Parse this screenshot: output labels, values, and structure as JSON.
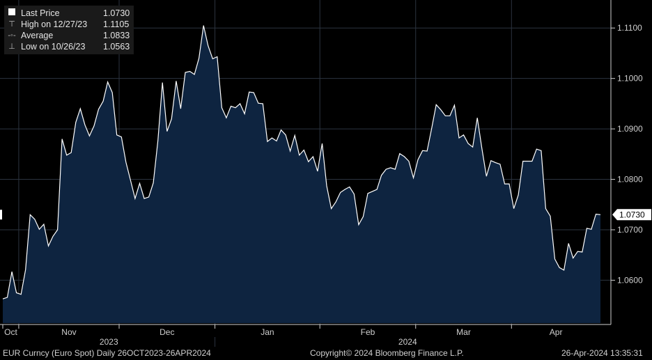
{
  "chart_data": {
    "type": "area",
    "ylim": [
      1.0515,
      1.115
    ],
    "y_ticks": [
      {
        "value": 1.06,
        "label": "1.0600"
      },
      {
        "value": 1.07,
        "label": "1.0700"
      },
      {
        "value": 1.08,
        "label": "1.0800"
      },
      {
        "value": 1.09,
        "label": "1.0900"
      },
      {
        "value": 1.1,
        "label": "1.1000"
      },
      {
        "value": 1.11,
        "label": "1.1100"
      }
    ],
    "x_month_labels": [
      "Oct",
      "Nov",
      "Dec",
      "Jan",
      "Feb",
      "Mar",
      "Apr"
    ],
    "x_year_labels": [
      "2023",
      "2024"
    ],
    "last_price_label": "1.0730",
    "x": [
      "2023-10-26",
      "2023-10-27",
      "2023-10-30",
      "2023-10-31",
      "2023-11-01",
      "2023-11-02",
      "2023-11-03",
      "2023-11-06",
      "2023-11-07",
      "2023-11-08",
      "2023-11-09",
      "2023-11-10",
      "2023-11-13",
      "2023-11-14",
      "2023-11-15",
      "2023-11-16",
      "2023-11-17",
      "2023-11-20",
      "2023-11-21",
      "2023-11-22",
      "2023-11-23",
      "2023-11-24",
      "2023-11-27",
      "2023-11-28",
      "2023-11-29",
      "2023-11-30",
      "2023-12-01",
      "2023-12-04",
      "2023-12-05",
      "2023-12-06",
      "2023-12-07",
      "2023-12-08",
      "2023-12-11",
      "2023-12-12",
      "2023-12-13",
      "2023-12-14",
      "2023-12-15",
      "2023-12-18",
      "2023-12-19",
      "2023-12-20",
      "2023-12-21",
      "2023-12-22",
      "2023-12-25",
      "2023-12-26",
      "2023-12-27",
      "2023-12-28",
      "2023-12-29",
      "2024-01-01",
      "2024-01-02",
      "2024-01-03",
      "2024-01-04",
      "2024-01-05",
      "2024-01-08",
      "2024-01-09",
      "2024-01-10",
      "2024-01-11",
      "2024-01-12",
      "2024-01-15",
      "2024-01-16",
      "2024-01-17",
      "2024-01-18",
      "2024-01-19",
      "2024-01-22",
      "2024-01-23",
      "2024-01-24",
      "2024-01-25",
      "2024-01-26",
      "2024-01-29",
      "2024-01-30",
      "2024-01-31",
      "2024-02-01",
      "2024-02-02",
      "2024-02-05",
      "2024-02-06",
      "2024-02-07",
      "2024-02-08",
      "2024-02-09",
      "2024-02-12",
      "2024-02-13",
      "2024-02-14",
      "2024-02-15",
      "2024-02-16",
      "2024-02-19",
      "2024-02-20",
      "2024-02-21",
      "2024-02-22",
      "2024-02-23",
      "2024-02-26",
      "2024-02-27",
      "2024-02-28",
      "2024-02-29",
      "2024-03-01",
      "2024-03-04",
      "2024-03-05",
      "2024-03-06",
      "2024-03-07",
      "2024-03-08",
      "2024-03-11",
      "2024-03-12",
      "2024-03-13",
      "2024-03-14",
      "2024-03-15",
      "2024-03-18",
      "2024-03-19",
      "2024-03-20",
      "2024-03-21",
      "2024-03-22",
      "2024-03-25",
      "2024-03-26",
      "2024-03-27",
      "2024-03-28",
      "2024-03-29",
      "2024-04-01",
      "2024-04-02",
      "2024-04-03",
      "2024-04-04",
      "2024-04-05",
      "2024-04-08",
      "2024-04-09",
      "2024-04-10",
      "2024-04-11",
      "2024-04-12",
      "2024-04-15",
      "2024-04-16",
      "2024-04-17",
      "2024-04-18",
      "2024-04-19",
      "2024-04-22",
      "2024-04-23",
      "2024-04-24",
      "2024-04-25",
      "2024-04-26"
    ],
    "series": [
      {
        "values": [
          1.0563,
          1.0566,
          1.0617,
          1.0575,
          1.0572,
          1.0621,
          1.073,
          1.0721,
          1.0701,
          1.0711,
          1.0668,
          1.0687,
          1.07,
          1.088,
          1.0848,
          1.0853,
          1.0913,
          1.094,
          1.0908,
          1.0886,
          1.0906,
          1.0939,
          1.0955,
          1.0993,
          1.0972,
          1.0888,
          1.0884,
          1.0834,
          1.0798,
          1.0762,
          1.0792,
          1.0762,
          1.0765,
          1.0793,
          1.0877,
          1.0992,
          1.0895,
          1.092,
          1.0995,
          1.094,
          1.1012,
          1.1014,
          1.1008,
          1.104,
          1.1105,
          1.1065,
          1.1039,
          1.1043,
          1.0942,
          1.0922,
          1.0945,
          1.0942,
          1.095,
          1.093,
          1.0973,
          1.0972,
          1.0951,
          1.095,
          1.0875,
          1.0882,
          1.0876,
          1.0898,
          1.0888,
          1.0856,
          1.0887,
          1.0848,
          1.0858,
          1.0835,
          1.0845,
          1.0816,
          1.0871,
          1.0787,
          1.0742,
          1.0755,
          1.0774,
          1.078,
          1.0785,
          1.0771,
          1.071,
          1.0726,
          1.0772,
          1.0776,
          1.078,
          1.0808,
          1.082,
          1.0823,
          1.082,
          1.0851,
          1.0845,
          1.0836,
          1.0803,
          1.0839,
          1.0857,
          1.0856,
          1.0901,
          1.0948,
          1.0938,
          1.0926,
          1.0926,
          1.0947,
          1.0882,
          1.0888,
          1.0871,
          1.0864,
          1.0922,
          1.0862,
          1.0806,
          1.0837,
          1.0833,
          1.083,
          1.0791,
          1.0791,
          1.0742,
          1.0769,
          1.0836,
          1.0836,
          1.0836,
          1.086,
          1.0857,
          1.0742,
          1.0727,
          1.0642,
          1.0625,
          1.062,
          1.0673,
          1.0644,
          1.0657,
          1.0656,
          1.0703,
          1.0701,
          1.0731,
          1.073
        ]
      }
    ]
  },
  "legend": {
    "last_price_label": "Last Price",
    "last_price_value": "1.0730",
    "high_label": "High on 12/27/23",
    "high_value": "1.1105",
    "average_label": "Average",
    "average_value": "1.0833",
    "low_label": "Low on 10/26/23",
    "low_value": "1.0563"
  },
  "footer": {
    "ticker": "EUR Curncy (Euro Spot)  Daily 26OCT2023-26APR2024",
    "copyright": "Copyright© 2024 Bloomberg Finance L.P.",
    "timestamp": "26-Apr-2024 13:35:31"
  },
  "colors": {
    "background": "#000000",
    "area_fill": "#0e2440",
    "line": "#ffffff",
    "grid": "#2c3440",
    "axis": "#cfcfcf"
  }
}
